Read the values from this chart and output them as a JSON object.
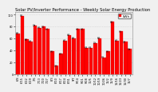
{
  "title": "Solar PV/Inverter Performance - Weekly Solar Energy Production",
  "bar_color": "#ff0000",
  "background_color": "#f0f0f0",
  "grid_color": "#cccccc",
  "weeks": [
    "6/8",
    "6/15",
    "6/22",
    "6/29",
    "7/6",
    "7/13",
    "7/20",
    "7/27",
    "8/3",
    "8/10",
    "8/17",
    "8/24",
    "8/31",
    "9/7",
    "9/14",
    "9/21",
    "9/28",
    "10/5",
    "10/12",
    "10/19",
    "10/26",
    "11/2",
    "11/9",
    "11/16",
    "11/23",
    "11/30",
    "12/7"
  ],
  "values": [
    68,
    98,
    58,
    55,
    82,
    78,
    80,
    76,
    38,
    14,
    34,
    56,
    66,
    60,
    76,
    76,
    44,
    44,
    52,
    60,
    28,
    38,
    88,
    56,
    72,
    54,
    42
  ],
  "ylim": [
    0,
    105
  ],
  "yticks": [
    0,
    20,
    40,
    60,
    80,
    100
  ],
  "ytick_labels": [
    "0",
    "20",
    "40",
    "60",
    "80",
    "100"
  ],
  "title_fontsize": 3.8,
  "tick_fontsize": 2.5,
  "value_fontsize": 2.2,
  "legend_label": "kWh",
  "legend_fontsize": 3.0
}
